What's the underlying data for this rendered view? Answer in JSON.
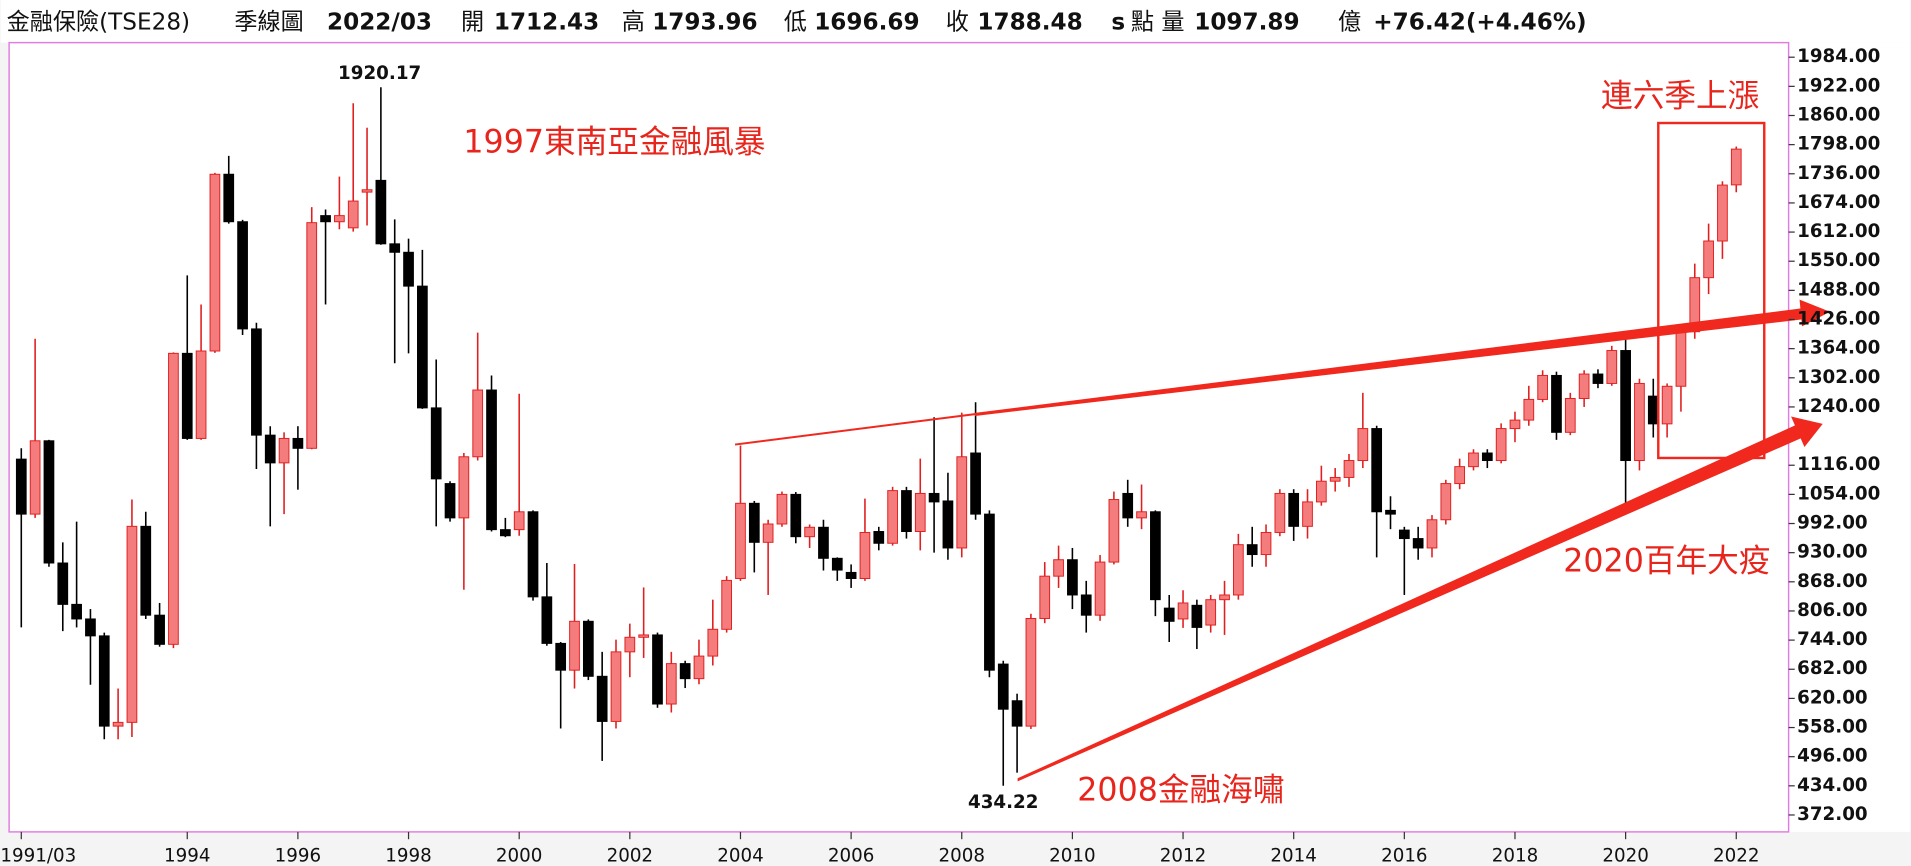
{
  "header": {
    "product": "金融保險(TSE28)",
    "period": "季線圖",
    "date": "2022/03",
    "open_label": "開",
    "high_label": "高",
    "low_label": "低",
    "close_label": "收",
    "s": "s",
    "unit": "點",
    "volume_label": "量",
    "volume": "1097.89",
    "volume_unit": "億",
    "change": "+76.42",
    "change_pct": "(+4.46%)"
  },
  "chart_data": {
    "type": "candlestick",
    "categories": [
      "1991/03",
      null,
      null,
      null,
      null,
      null,
      null,
      null,
      null,
      null,
      null,
      null,
      "1994",
      null,
      null,
      null,
      null,
      null,
      null,
      null,
      "1996",
      null,
      null,
      null,
      null,
      null,
      null,
      null,
      "1998",
      null,
      null,
      null,
      null,
      null,
      null,
      null,
      "2000",
      null,
      null,
      null,
      null,
      null,
      null,
      null,
      "2002",
      null,
      null,
      null,
      null,
      null,
      null,
      null,
      "2004",
      null,
      null,
      null,
      null,
      null,
      null,
      null,
      "2006",
      null,
      null,
      null,
      null,
      null,
      null,
      null,
      "2008",
      null,
      null,
      null,
      null,
      null,
      null,
      null,
      "2010",
      null,
      null,
      null,
      null,
      null,
      null,
      null,
      "2012",
      null,
      null,
      null,
      null,
      null,
      null,
      null,
      "2014",
      null,
      null,
      null,
      null,
      null,
      null,
      null,
      "2016",
      null,
      null,
      null,
      null,
      null,
      null,
      null,
      "2018",
      null,
      null,
      null,
      null,
      null,
      null,
      null,
      "2020",
      null,
      null,
      null,
      null,
      null,
      null,
      null,
      "2022"
    ],
    "open": [
      1129,
      1012,
      1168,
      908,
      820,
      789,
      753,
      561,
      569,
      986,
      797,
      735,
      1354,
      1173,
      1359,
      1735,
      1634,
      1406,
      1180,
      1121,
      1173,
      1152,
      1647,
      1634,
      1621,
      1697,
      1722,
      1587,
      1569,
      1497,
      1238,
      1077,
      1004,
      1134,
      1276,
      979,
      979,
      1017,
      836,
      737,
      680,
      784,
      667,
      571,
      719,
      750,
      755,
      608,
      694,
      662,
      710,
      767,
      875,
      1035,
      952,
      991,
      1054,
      964,
      984,
      918,
      888,
      875,
      975,
      950,
      1062,
      975,
      1056,
      1040,
      940,
      1142,
      1012,
      693,
      615,
      561,
      790,
      880,
      915,
      840,
      797,
      910,
      1056,
      1004,
      1017,
      812,
      789,
      818,
      776,
      830,
      840,
      947,
      926,
      973,
      1056,
      986,
      1038,
      1082,
      1090,
      1126,
      1194,
      1020,
      978,
      960,
      940,
      1000,
      1077,
      1113,
      1142,
      1126,
      1194,
      1212,
      1256,
      1307,
      1186,
      1258,
      1310,
      1290,
      1360,
      1126,
      1263,
      1204,
      1284,
      1400,
      1515,
      1593,
      1712.43
    ],
    "high": [
      1152,
      1385,
      1170,
      952,
      996,
      810,
      760,
      641,
      1043,
      1017,
      823,
      1356,
      1520,
      1458,
      1738,
      1774,
      1638,
      1419,
      1199,
      1186,
      1199,
      1665,
      1660,
      1730,
      1886,
      1834,
      1920.17,
      1639,
      1598,
      1574,
      1341,
      1082,
      1142,
      1398,
      1307,
      1004,
      1268,
      1020,
      908,
      740,
      906,
      788,
      719,
      745,
      779,
      856,
      760,
      719,
      700,
      745,
      830,
      880,
      1158,
      1040,
      1000,
      1060,
      1059,
      990,
      1000,
      920,
      905,
      1045,
      985,
      1070,
      1070,
      1130,
      1218,
      1100,
      1228,
      1250,
      1020,
      700,
      630,
      800,
      910,
      945,
      940,
      870,
      925,
      1060,
      1085,
      1075,
      1020,
      840,
      850,
      830,
      840,
      870,
      970,
      985,
      990,
      1065,
      1065,
      1065,
      1115,
      1110,
      1140,
      1270,
      1200,
      1050,
      985,
      985,
      1010,
      1085,
      1130,
      1150,
      1150,
      1205,
      1230,
      1285,
      1318,
      1315,
      1270,
      1318,
      1320,
      1370,
      1400,
      1300,
      1300,
      1290,
      1410,
      1545,
      1630,
      1720,
      1793.96
    ],
    "low": [
      771,
      1004,
      900,
      763,
      771,
      649,
      533,
      533,
      538,
      789,
      730,
      727,
      1170,
      1170,
      1355,
      1630,
      1393,
      1108,
      986,
      1012,
      1064,
      1150,
      1458,
      1618,
      1613,
      1626,
      1585,
      1333,
      1354,
      1236,
      986,
      996,
      851,
      1126,
      975,
      963,
      966,
      828,
      732,
      556,
      641,
      659,
      487,
      556,
      665,
      706,
      600,
      590,
      642,
      650,
      690,
      760,
      870,
      888,
      840,
      985,
      950,
      940,
      892,
      870,
      855,
      870,
      935,
      945,
      960,
      935,
      930,
      915,
      920,
      1000,
      665,
      434.22,
      462,
      555,
      780,
      855,
      810,
      760,
      785,
      905,
      985,
      980,
      795,
      740,
      770,
      725,
      760,
      755,
      830,
      900,
      900,
      965,
      955,
      960,
      1030,
      1060,
      1070,
      1110,
      920,
      980,
      840,
      915,
      920,
      990,
      1065,
      1105,
      1110,
      1120,
      1165,
      1200,
      1250,
      1170,
      1180,
      1240,
      1280,
      1285,
      1020,
      1105,
      1175,
      1175,
      1230,
      1385,
      1480,
      1555,
      1696.69
    ],
    "close": [
      1012,
      1168,
      908,
      820,
      789,
      753,
      561,
      569,
      986,
      797,
      735,
      1354,
      1173,
      1359,
      1735,
      1634,
      1406,
      1180,
      1121,
      1173,
      1152,
      1632,
      1634,
      1647,
      1678,
      1702,
      1587,
      1569,
      1497,
      1238,
      1087,
      1004,
      1134,
      1276,
      979,
      966,
      1017,
      836,
      737,
      680,
      784,
      667,
      571,
      719,
      750,
      755,
      608,
      694,
      662,
      710,
      767,
      871,
      1035,
      952,
      991,
      1054,
      964,
      984,
      918,
      893,
      875,
      973,
      950,
      1062,
      975,
      1056,
      1038,
      940,
      1134,
      1012,
      680,
      597,
      561,
      790,
      880,
      915,
      840,
      797,
      910,
      1043,
      1004,
      1017,
      830,
      784,
      823,
      771,
      830,
      840,
      947,
      926,
      973,
      1056,
      986,
      1038,
      1082,
      1090,
      1126,
      1194,
      1017,
      1012,
      960,
      940,
      1000,
      1077,
      1113,
      1142,
      1126,
      1194,
      1212,
      1256,
      1307,
      1186,
      1258,
      1310,
      1290,
      1360,
      1126,
      1290,
      1204,
      1284,
      1400,
      1515,
      1593,
      1712,
      1788.48
    ],
    "up_color": "#f47c7c",
    "up_edge": "#e02020",
    "down_color": "#000000",
    "ylim": [
      336,
      2015
    ],
    "yticks": [
      {
        "value": 1984,
        "label": "1984.00"
      },
      {
        "value": 1922,
        "label": "1922.00"
      },
      {
        "value": 1860,
        "label": "1860.00"
      },
      {
        "value": 1798,
        "label": "1798.00"
      },
      {
        "value": 1736,
        "label": "1736.00"
      },
      {
        "value": 1674,
        "label": "1674.00"
      },
      {
        "value": 1612,
        "label": "1612.00"
      },
      {
        "value": 1550,
        "label": "1550.00"
      },
      {
        "value": 1488,
        "label": "1488.00"
      },
      {
        "value": 1426,
        "label": "1426.00"
      },
      {
        "value": 1364,
        "label": "1364.00"
      },
      {
        "value": 1302,
        "label": "1302.00"
      },
      {
        "value": 1240,
        "label": "1240.00"
      },
      {
        "value": 1116,
        "label": "1116.00"
      },
      {
        "value": 1054,
        "label": "1054.00"
      },
      {
        "value": 992,
        "label": "992.00"
      },
      {
        "value": 930,
        "label": "930.00"
      },
      {
        "value": 868,
        "label": "868.00"
      },
      {
        "value": 806,
        "label": "806.00"
      },
      {
        "value": 744,
        "label": "744.00"
      },
      {
        "value": 682,
        "label": "682.00"
      },
      {
        "value": 620,
        "label": "620.00"
      },
      {
        "value": 558,
        "label": "558.00"
      },
      {
        "value": 496,
        "label": "496.00"
      },
      {
        "value": 434,
        "label": "434.00"
      },
      {
        "value": 372,
        "label": "372.00"
      }
    ],
    "annotations": [
      "1997東南亞金融風暴",
      "2008金融海嘯",
      "2020百年大疫",
      "連六季上漲"
    ]
  }
}
